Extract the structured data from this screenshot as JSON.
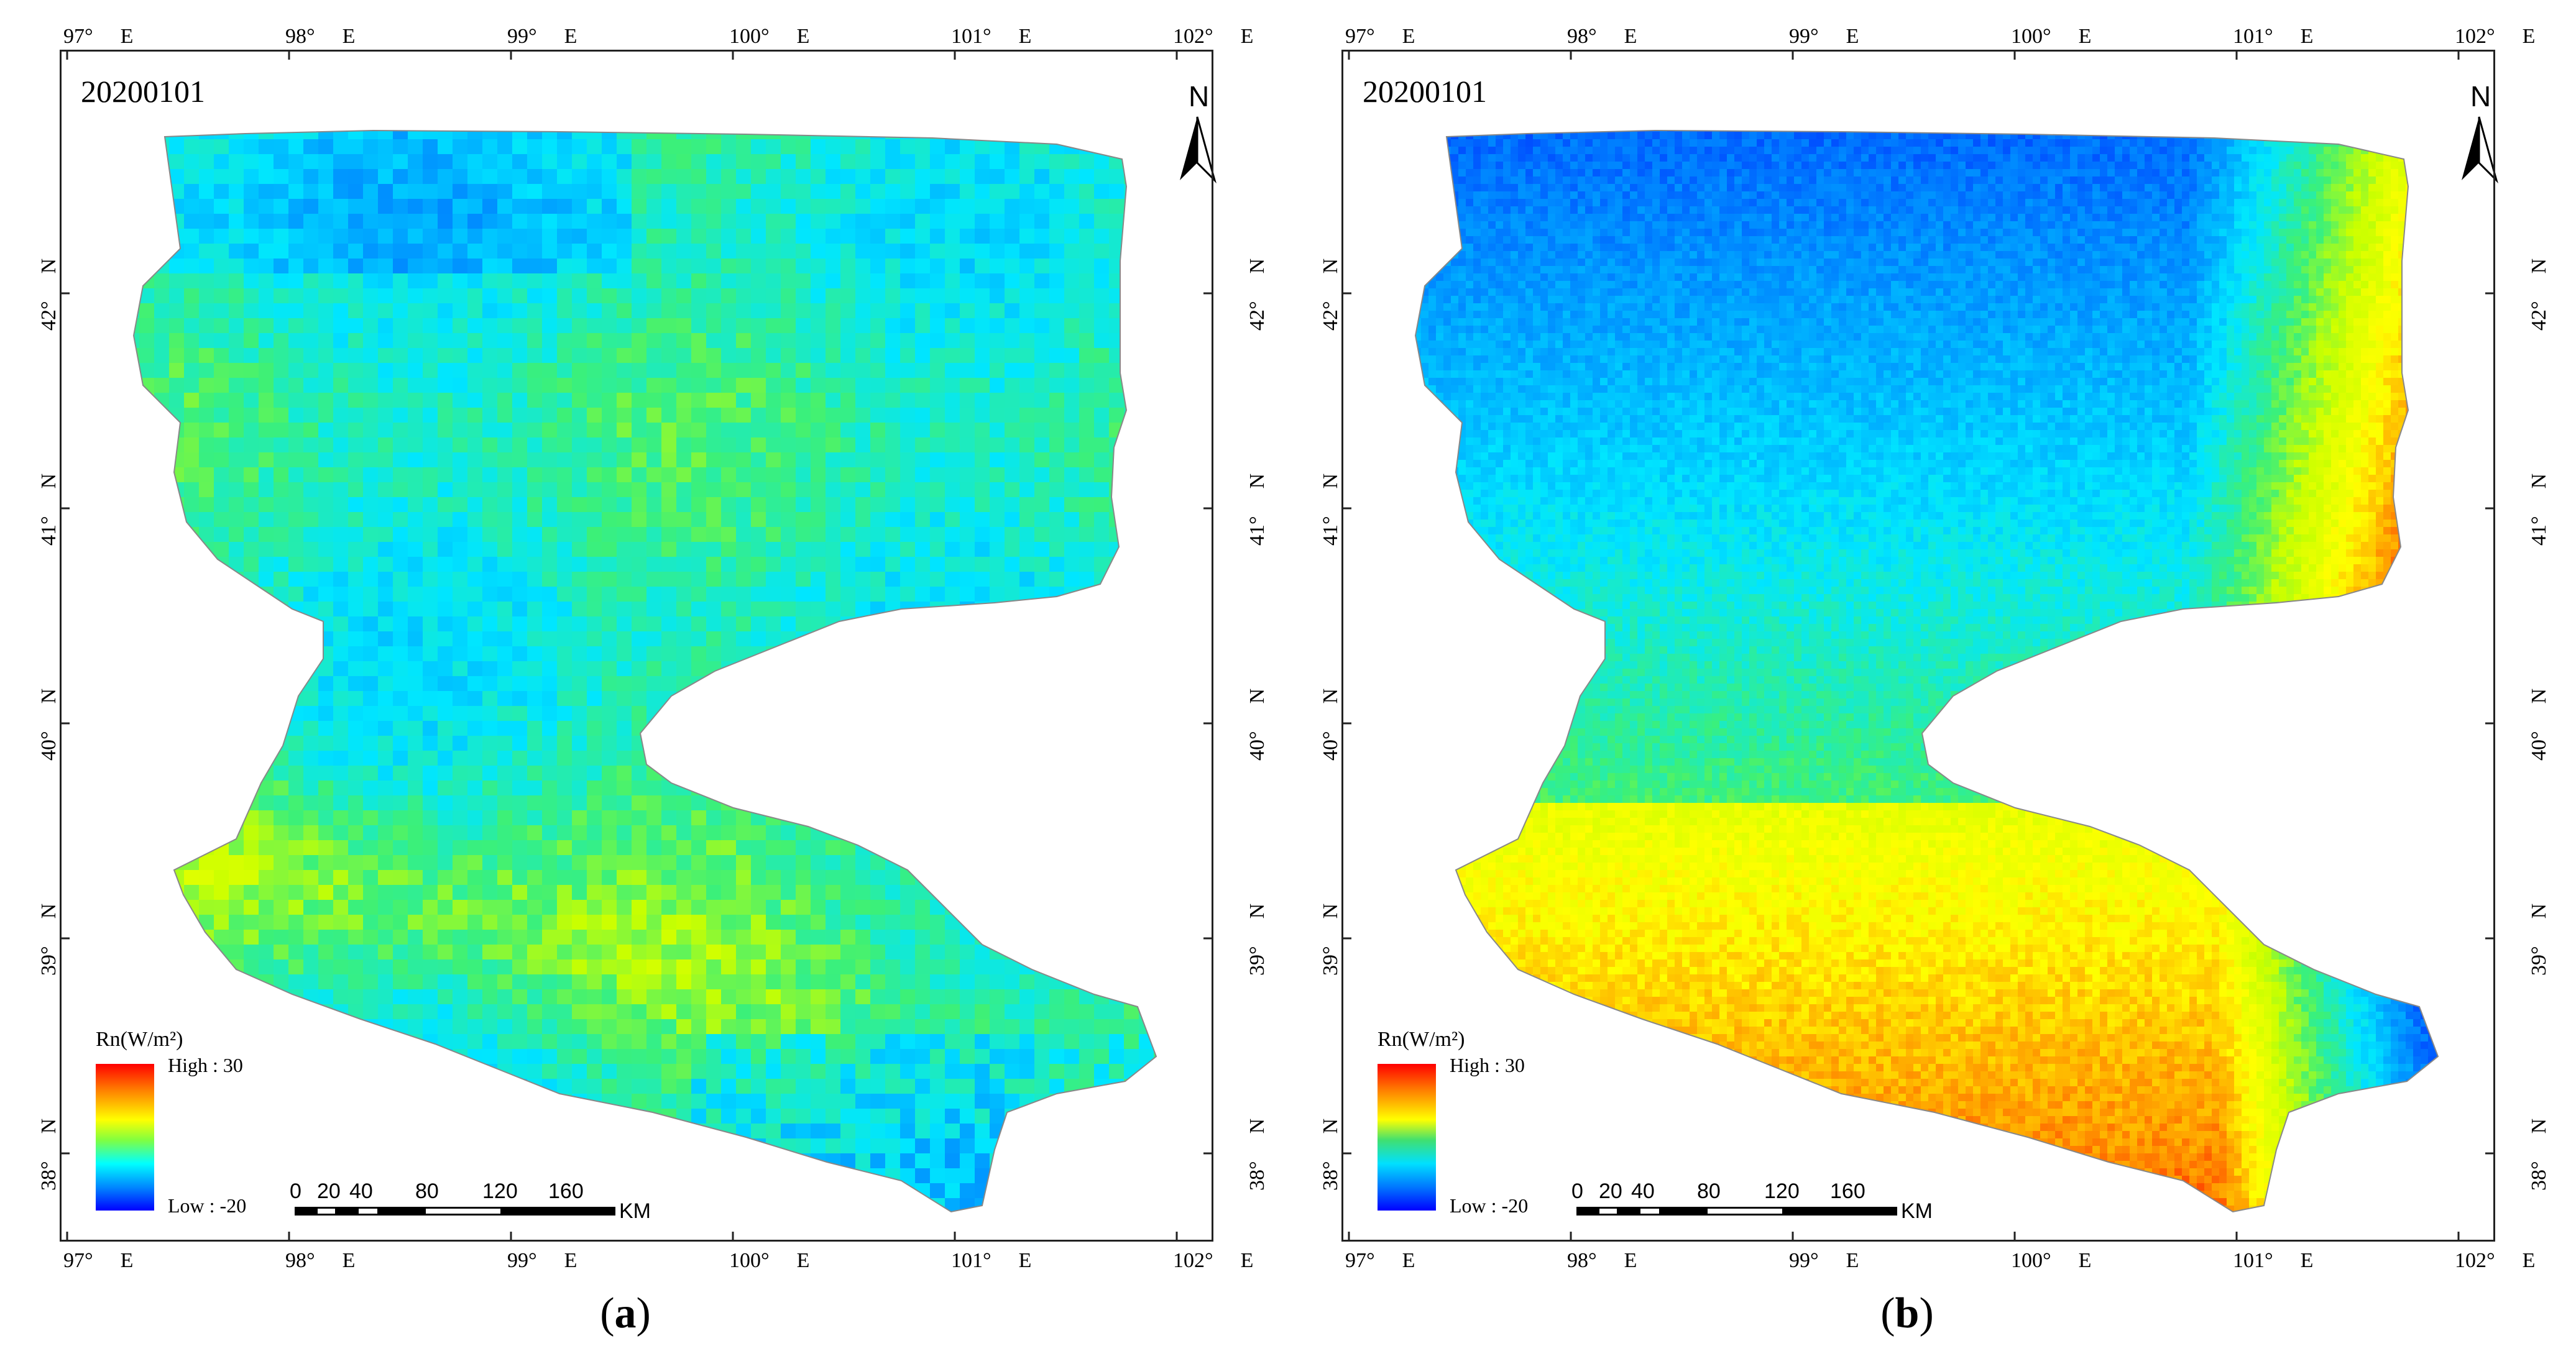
{
  "panels": [
    {
      "id": "a",
      "caption_open": "(",
      "caption_letter": "a",
      "caption_close": ")",
      "date": "20200101",
      "style": "coarse-grid",
      "legend": {
        "title": "Rn(W/m²)",
        "high": "High : 30",
        "low": "Low : -20"
      }
    },
    {
      "id": "b",
      "caption_open": "(",
      "caption_letter": "b",
      "caption_close": ")",
      "date": "20200101",
      "style": "fine-resolution",
      "legend": {
        "title": "Rn(W/m²)",
        "high": "High : 30",
        "low": "Low : -20"
      }
    }
  ],
  "longitude_ticks": [
    {
      "deg": "97°",
      "hemi": "E"
    },
    {
      "deg": "98°",
      "hemi": "E"
    },
    {
      "deg": "99°",
      "hemi": "E"
    },
    {
      "deg": "100°",
      "hemi": "E"
    },
    {
      "deg": "101°",
      "hemi": "E"
    },
    {
      "deg": "102°",
      "hemi": "E"
    }
  ],
  "latitude_ticks": [
    {
      "deg": "42°",
      "hemi": "N"
    },
    {
      "deg": "41°",
      "hemi": "N"
    },
    {
      "deg": "40°",
      "hemi": "N"
    },
    {
      "deg": "39°",
      "hemi": "N"
    },
    {
      "deg": "38°",
      "hemi": "N"
    }
  ],
  "scale_bar": {
    "labels": [
      "0",
      "20",
      "40",
      "80",
      "120",
      "160"
    ],
    "unit": "KM"
  },
  "north_arrow": {
    "label": "N"
  },
  "colors": {
    "high": "#ff0000",
    "mid": "#ffff00",
    "low": "#0000ff",
    "frame": "#222222"
  }
}
